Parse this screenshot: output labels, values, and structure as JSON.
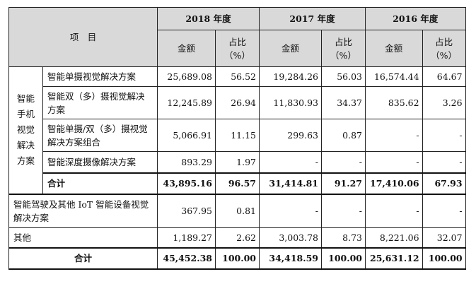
{
  "header": {
    "item_label": "项　目",
    "years": [
      "2018 年度",
      "2017 年度",
      "2016 年度"
    ],
    "amount_label": "金额",
    "ratio_label_line1": "占比",
    "ratio_label_line2": "（%）"
  },
  "group": {
    "label_chars": [
      "智能",
      "手机",
      "视觉",
      "解决",
      "方案"
    ]
  },
  "rows": [
    {
      "label": "智能单摄视觉解决方案",
      "v": [
        "25,689.08",
        "56.52",
        "19,284.26",
        "56.03",
        "16,574.44",
        "64.67"
      ]
    },
    {
      "label": "智能双（多）摄视觉解决方案",
      "v": [
        "12,245.89",
        "26.94",
        "11,830.93",
        "34.37",
        "835.62",
        "3.26"
      ]
    },
    {
      "label": "智能单摄/双（多）摄视觉解决方案组合",
      "v": [
        "5,066.91",
        "11.15",
        "299.63",
        "0.87",
        "-",
        "-"
      ]
    },
    {
      "label": "智能深度摄像解决方案",
      "v": [
        "893.29",
        "1.97",
        "-",
        "-",
        "-",
        "-"
      ]
    }
  ],
  "subtotal": {
    "label": "合计",
    "v": [
      "43,895.16",
      "96.57",
      "31,414.81",
      "91.27",
      "17,410.06",
      "67.93"
    ]
  },
  "iot": {
    "label": "智能驾驶及其他 IoT 智能设备视觉解决方案",
    "v": [
      "367.95",
      "0.81",
      "-",
      "-",
      "-",
      "-"
    ]
  },
  "other": {
    "label": "其他",
    "v": [
      "1,189.27",
      "2.62",
      "3,003.78",
      "8.73",
      "8,221.06",
      "32.07"
    ]
  },
  "total": {
    "label": "合计",
    "v": [
      "45,452.38",
      "100.00",
      "34,418.59",
      "100.00",
      "25,631.12",
      "100.00"
    ]
  }
}
